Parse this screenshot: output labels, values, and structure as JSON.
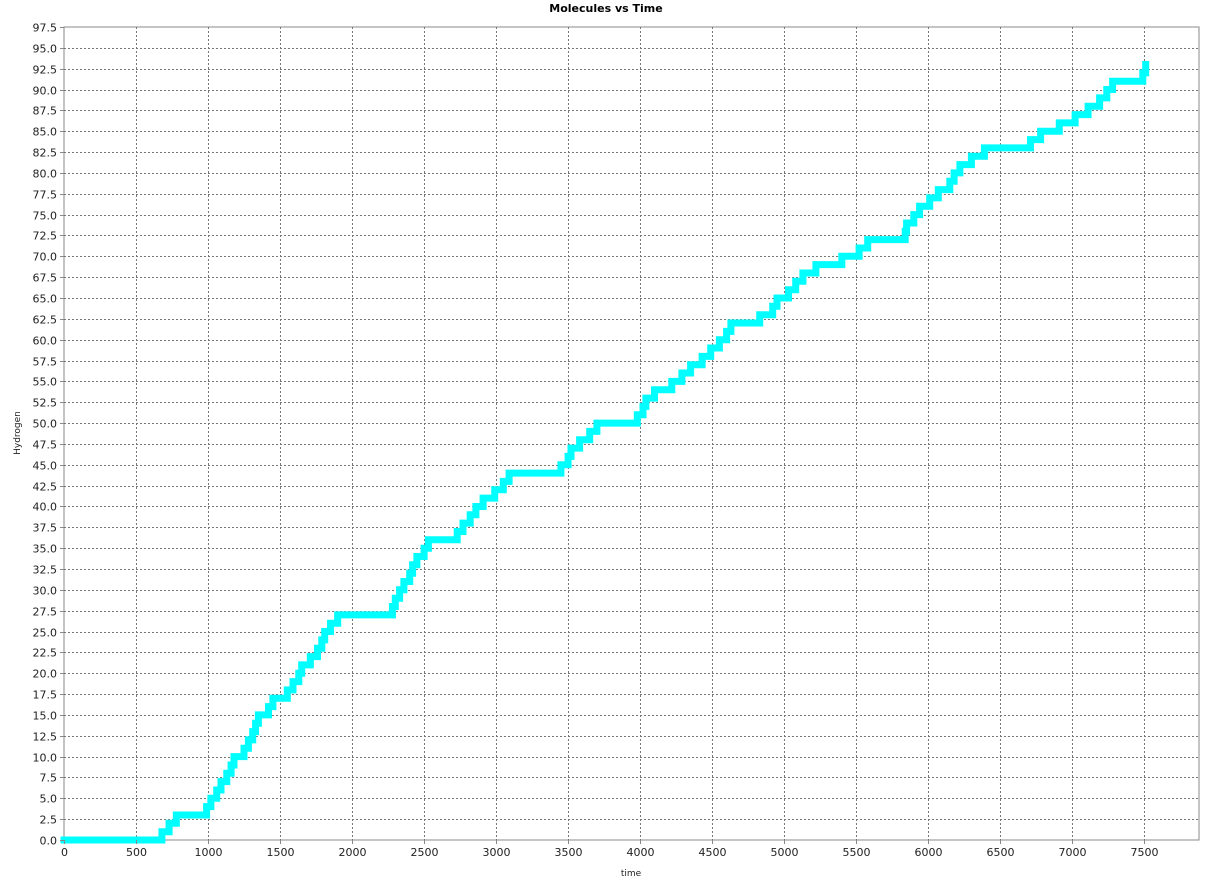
{
  "chart_data": {
    "type": "line",
    "title": "Molecules vs Time",
    "xlabel": "time",
    "ylabel": "Hydrogen",
    "xlim": [
      0,
      7880
    ],
    "ylim": [
      0,
      97.5
    ],
    "x_ticks": [
      0,
      500,
      1000,
      1500,
      2000,
      2500,
      3000,
      3500,
      4000,
      4500,
      5000,
      5500,
      6000,
      6500,
      7000,
      7500
    ],
    "x_tick_labels": [
      "0",
      "500",
      "1000",
      "1500",
      "2000",
      "2500",
      "3000",
      "3500",
      "4000",
      "4500",
      "5000",
      "5500",
      "6000",
      "6500",
      "7000",
      "7500"
    ],
    "y_ticks": [
      0,
      2.5,
      5,
      7.5,
      10,
      12.5,
      15,
      17.5,
      20,
      22.5,
      25,
      27.5,
      30,
      32.5,
      35,
      37.5,
      40,
      42.5,
      45,
      47.5,
      50,
      52.5,
      55,
      57.5,
      60,
      62.5,
      65,
      67.5,
      70,
      72.5,
      75,
      77.5,
      80,
      82.5,
      85,
      87.5,
      90,
      92.5,
      95,
      97.5
    ],
    "y_tick_labels": [
      "0.0",
      "2.5",
      "5.0",
      "7.5",
      "10.0",
      "12.5",
      "15.0",
      "17.5",
      "20.0",
      "22.5",
      "25.0",
      "27.5",
      "30.0",
      "32.5",
      "35.0",
      "37.5",
      "40.0",
      "42.5",
      "45.0",
      "47.5",
      "50.0",
      "52.5",
      "55.0",
      "57.5",
      "60.0",
      "62.5",
      "65.0",
      "67.5",
      "70.0",
      "72.5",
      "75.0",
      "77.5",
      "80.0",
      "82.5",
      "85.0",
      "87.5",
      "90.0",
      "92.5",
      "95.0",
      "97.5"
    ],
    "grid": true,
    "series": [
      {
        "color": "#00ffff",
        "step": true,
        "x": [
          0,
          680,
          730,
          780,
          990,
          1020,
          1060,
          1090,
          1130,
          1160,
          1180,
          1250,
          1280,
          1310,
          1330,
          1350,
          1420,
          1450,
          1550,
          1590,
          1630,
          1650,
          1710,
          1760,
          1790,
          1810,
          1850,
          1900,
          1970,
          2280,
          2300,
          2330,
          2360,
          2400,
          2420,
          2450,
          2500,
          2530,
          2730,
          2770,
          2820,
          2860,
          2910,
          2990,
          3050,
          3090,
          3450,
          3500,
          3520,
          3580,
          3650,
          3700,
          3980,
          4020,
          4040,
          4100,
          4220,
          4290,
          4350,
          4430,
          4490,
          4550,
          4600,
          4630,
          4830,
          4920,
          4950,
          5030,
          5080,
          5130,
          5220,
          5400,
          5520,
          5580,
          5840,
          5850,
          5900,
          5940,
          6010,
          6070,
          6150,
          6180,
          6220,
          6300,
          6390,
          6710,
          6780,
          6910,
          7020,
          7110,
          7190,
          7240,
          7280,
          7490,
          7510
        ],
        "y": [
          0,
          1,
          2,
          3,
          4,
          5,
          6,
          7,
          8,
          9,
          10,
          11,
          12,
          13,
          14,
          15,
          16,
          17,
          18,
          19,
          20,
          21,
          22,
          23,
          24,
          25,
          26,
          27,
          27,
          28,
          29,
          30,
          31,
          32,
          33,
          34,
          35,
          36,
          37,
          38,
          39,
          40,
          41,
          42,
          43,
          44,
          45,
          46,
          47,
          48,
          49,
          50,
          51,
          52,
          53,
          54,
          55,
          56,
          57,
          58,
          59,
          60,
          61,
          62,
          63,
          64,
          65,
          66,
          67,
          68,
          69,
          70,
          71,
          72,
          73,
          74,
          75,
          76,
          77,
          78,
          79,
          80,
          81,
          82,
          83,
          84,
          85,
          86,
          87,
          88,
          89,
          90,
          91,
          92,
          93
        ]
      }
    ]
  }
}
